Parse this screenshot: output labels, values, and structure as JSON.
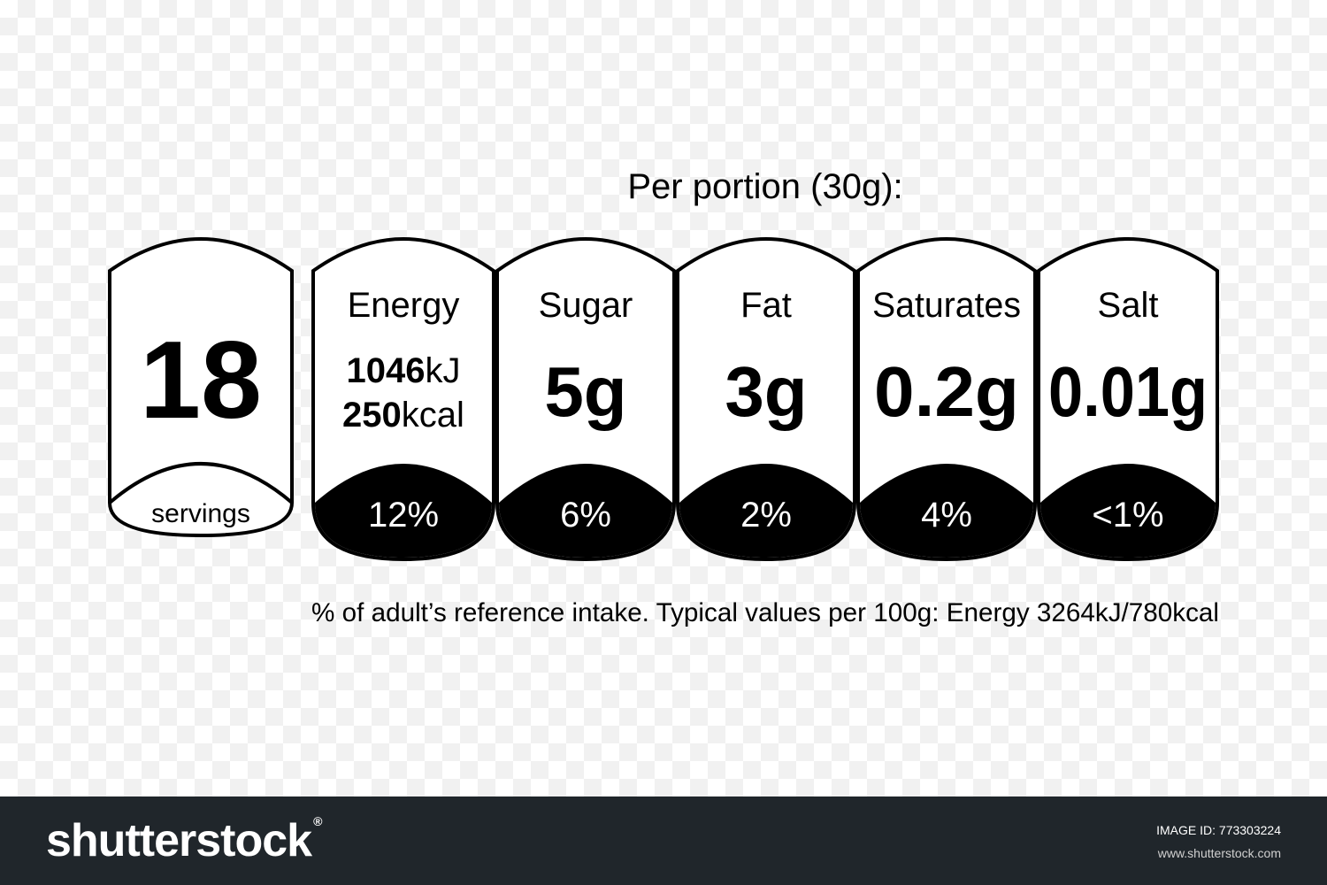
{
  "header": {
    "per_portion": "Per portion (30g):"
  },
  "servings": {
    "count": "18",
    "label": "servings"
  },
  "nutrients": [
    {
      "name": "Energy",
      "value_kj": "1046",
      "unit_kj": "kJ",
      "value_kcal": "250",
      "unit_kcal": "kcal",
      "percent": "12%"
    },
    {
      "name": "Sugar",
      "value": "5g",
      "percent": "6%"
    },
    {
      "name": "Fat",
      "value": "3g",
      "percent": "2%"
    },
    {
      "name": "Saturates",
      "value": "0.2g",
      "percent": "4%"
    },
    {
      "name": "Salt",
      "value": "0.01g",
      "percent": "<1%"
    }
  ],
  "footnote": "% of adult’s reference intake. Typical values per 100g: Energy 3264kJ/780kcal",
  "footer": {
    "brand": "shutterstock",
    "image_id_label": "IMAGE ID: 773303224",
    "site": "www.shutterstock.com"
  },
  "colors": {
    "ink": "#000000",
    "background": "#ffffff",
    "footer_bar": "#20262b"
  }
}
